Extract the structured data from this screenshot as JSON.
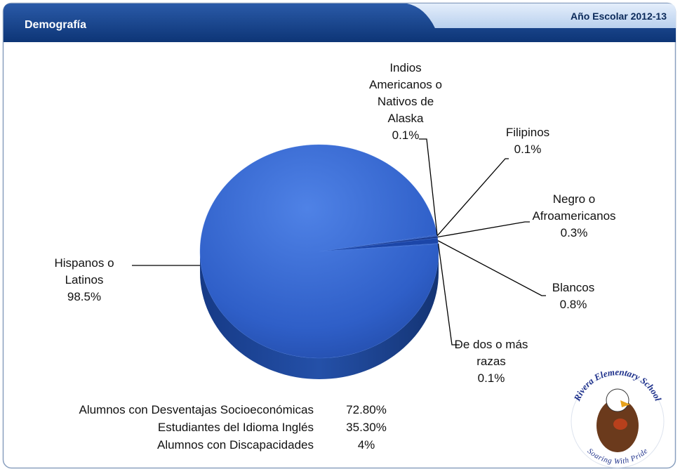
{
  "header": {
    "title": "Demografía",
    "tab": "Año Escolar 2012-13"
  },
  "chart_data": {
    "type": "pie",
    "categories": [
      "Indios Americanos o Nativos de Alaska",
      "Filipinos",
      "Negro o Afroamericanos",
      "Blancos",
      "De dos o más razas",
      "Hispanos o Latinos"
    ],
    "values": [
      0.1,
      0.1,
      0.3,
      0.8,
      0.1,
      98.5
    ],
    "value_labels": [
      "0.1%",
      "0.1%",
      "0.3%",
      "0.8%",
      "0.1%",
      "98.5%"
    ],
    "color": "#2f5fc8"
  },
  "table": {
    "rows": [
      [
        "Alumnos con Desventajas Socioeconómicas",
        "72.80%"
      ],
      [
        "Estudiantes del Idioma Inglés",
        "35.30%"
      ],
      [
        "Alumnos con Discapacidades",
        "4%"
      ]
    ]
  },
  "logo": {
    "name": "Rivera Elementary School",
    "motto": "Soaring With Pride"
  }
}
